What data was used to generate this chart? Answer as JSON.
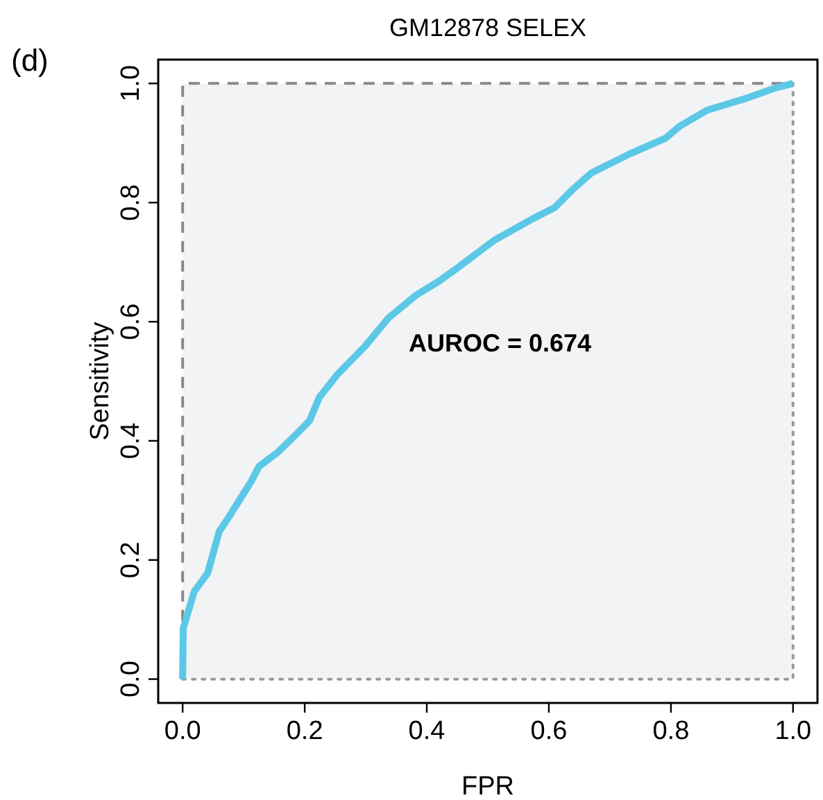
{
  "chart_data": {
    "type": "line",
    "title": "GM12878 SELEX",
    "xlabel": "FPR",
    "ylabel": "Sensitivity",
    "annotations": [
      "(d)",
      "AUROC = 0.674"
    ],
    "xlim": [
      -0.04,
      1.04
    ],
    "ylim": [
      -0.04,
      1.04
    ],
    "xticks": [
      {
        "value": 0,
        "label": "0.0"
      },
      {
        "value": 0.2,
        "label": "0.2"
      },
      {
        "value": 0.4,
        "label": "0.4"
      },
      {
        "value": 0.6,
        "label": "0.6"
      },
      {
        "value": 0.8,
        "label": "0.8"
      },
      {
        "value": 1,
        "label": "1.0"
      }
    ],
    "yticks": [
      {
        "value": 0,
        "label": "0.0"
      },
      {
        "value": 0.2,
        "label": "0.2"
      },
      {
        "value": 0.4,
        "label": "0.4"
      },
      {
        "value": 0.6,
        "label": "0.6"
      },
      {
        "value": 0.8,
        "label": "0.8"
      },
      {
        "value": 1,
        "label": "1.0"
      }
    ],
    "grid": false,
    "series": [
      {
        "color": "#888888",
        "line_style": "dashed",
        "x": [
          0,
          0,
          1
        ],
        "values": [
          0,
          1,
          1
        ]
      },
      {
        "color": "#999999",
        "line_style": "dotted",
        "x": [
          0,
          1,
          1
        ],
        "values": [
          0,
          0,
          1
        ]
      },
      {
        "color": "#5bc8e6",
        "line_style": "solid",
        "x": [
          0,
          0.001,
          0.019,
          0.041,
          0.06,
          0.075,
          0.113,
          0.125,
          0.155,
          0.186,
          0.208,
          0.224,
          0.254,
          0.299,
          0.337,
          0.383,
          0.42,
          0.451,
          0.511,
          0.572,
          0.61,
          0.64,
          0.67,
          0.731,
          0.791,
          0.814,
          0.859,
          0.92,
          0.973,
          1.0
        ],
        "values": [
          0,
          0.085,
          0.147,
          0.178,
          0.248,
          0.271,
          0.333,
          0.357,
          0.38,
          0.411,
          0.434,
          0.473,
          0.512,
          0.559,
          0.606,
          0.645,
          0.668,
          0.691,
          0.737,
          0.772,
          0.792,
          0.823,
          0.85,
          0.881,
          0.908,
          0.928,
          0.955,
          0.974,
          0.993,
          1.0
        ]
      }
    ]
  }
}
